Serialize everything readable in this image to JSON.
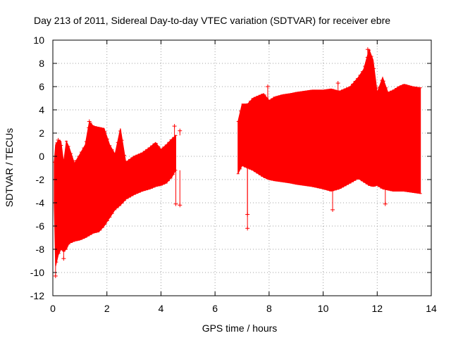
{
  "chart_data": {
    "type": "scatter",
    "title": "Day 213 of 2011, Sidereal Day-to-day VTEC variation (SDTVAR) for receiver ebre",
    "xlabel": "GPS time / hours",
    "ylabel": "SDTVAR / TECUs",
    "xlim": [
      0,
      14
    ],
    "ylim": [
      -12,
      10
    ],
    "xticks": [
      "0",
      "2",
      "4",
      "6",
      "8",
      "10",
      "12",
      "14"
    ],
    "yticks": [
      "-12",
      "-10",
      "-8",
      "-6",
      "-4",
      "-2",
      "0",
      "2",
      "4",
      "6",
      "8",
      "10"
    ],
    "grid": true,
    "legend": "none",
    "series": [
      {
        "error_bars": true,
        "color": "#ff0000",
        "envelope_x": [
          0.05,
          0.1,
          0.2,
          0.3,
          0.4,
          0.5,
          0.6,
          0.8,
          1.0,
          1.2,
          1.35,
          1.5,
          1.7,
          1.9,
          2.1,
          2.3,
          2.5,
          2.7,
          3.0,
          3.3,
          3.6,
          3.8,
          4.0,
          4.2,
          4.4,
          4.55
        ],
        "upper": [
          -0.5,
          1.0,
          1.4,
          1.3,
          -0.5,
          1.3,
          0.8,
          -0.6,
          0.2,
          1.0,
          3.0,
          2.6,
          2.5,
          2.4,
          1.0,
          0.2,
          2.4,
          -0.5,
          0.0,
          0.3,
          0.8,
          1.2,
          0.6,
          1.0,
          1.5,
          1.8
        ],
        "lower": [
          -4.0,
          -9.5,
          -8.5,
          -8.0,
          -8.2,
          -8.0,
          -7.5,
          -7.3,
          -7.2,
          -7.0,
          -6.8,
          -6.6,
          -6.5,
          -6.0,
          -5.3,
          -4.6,
          -4.2,
          -3.7,
          -3.3,
          -3.0,
          -2.8,
          -2.6,
          -2.5,
          -2.3,
          -1.8,
          -1.2
        ],
        "outliers": [
          {
            "x": 0.1,
            "y": -10.3
          },
          {
            "x": 0.4,
            "y": -8.8
          },
          {
            "x": 0.2,
            "y": 1.4
          },
          {
            "x": 1.35,
            "y": 3.0
          },
          {
            "x": 4.5,
            "y": 2.6
          },
          {
            "x": 4.55,
            "y": -4.1
          },
          {
            "x": 4.7,
            "y": -4.2
          },
          {
            "x": 4.7,
            "y": 2.2
          }
        ]
      },
      {
        "error_bars": true,
        "color": "#ff0000",
        "envelope_x": [
          6.85,
          7.0,
          7.2,
          7.4,
          7.6,
          7.8,
          8.0,
          8.2,
          8.5,
          8.8,
          9.0,
          9.3,
          9.6,
          10.0,
          10.3,
          10.6,
          11.0,
          11.3,
          11.5,
          11.7,
          11.85,
          12.0,
          12.2,
          12.4,
          12.6,
          12.8,
          13.0,
          13.3,
          13.6
        ],
        "upper": [
          3.0,
          4.5,
          4.5,
          5.0,
          5.2,
          5.4,
          4.8,
          5.1,
          5.3,
          5.4,
          5.5,
          5.6,
          5.7,
          5.7,
          5.8,
          5.6,
          6.0,
          6.8,
          7.5,
          9.2,
          8.3,
          5.5,
          6.8,
          5.5,
          5.7,
          6.0,
          6.2,
          6.0,
          5.9
        ],
        "lower": [
          -1.5,
          -0.8,
          -1.0,
          -1.2,
          -1.5,
          -1.8,
          -2.0,
          -2.1,
          -2.2,
          -2.3,
          -2.4,
          -2.5,
          -2.6,
          -2.8,
          -3.0,
          -2.8,
          -2.3,
          -1.9,
          -2.2,
          -2.5,
          -2.6,
          -2.5,
          -2.8,
          -2.9,
          -3.0,
          -3.0,
          -3.0,
          -3.1,
          -3.2
        ],
        "outliers": [
          {
            "x": 7.2,
            "y": -6.2
          },
          {
            "x": 7.2,
            "y": -5.0
          },
          {
            "x": 7.95,
            "y": 6.0
          },
          {
            "x": 10.35,
            "y": -4.6
          },
          {
            "x": 10.55,
            "y": 6.3
          },
          {
            "x": 11.65,
            "y": 9.2
          },
          {
            "x": 12.3,
            "y": -4.1
          }
        ]
      }
    ]
  }
}
